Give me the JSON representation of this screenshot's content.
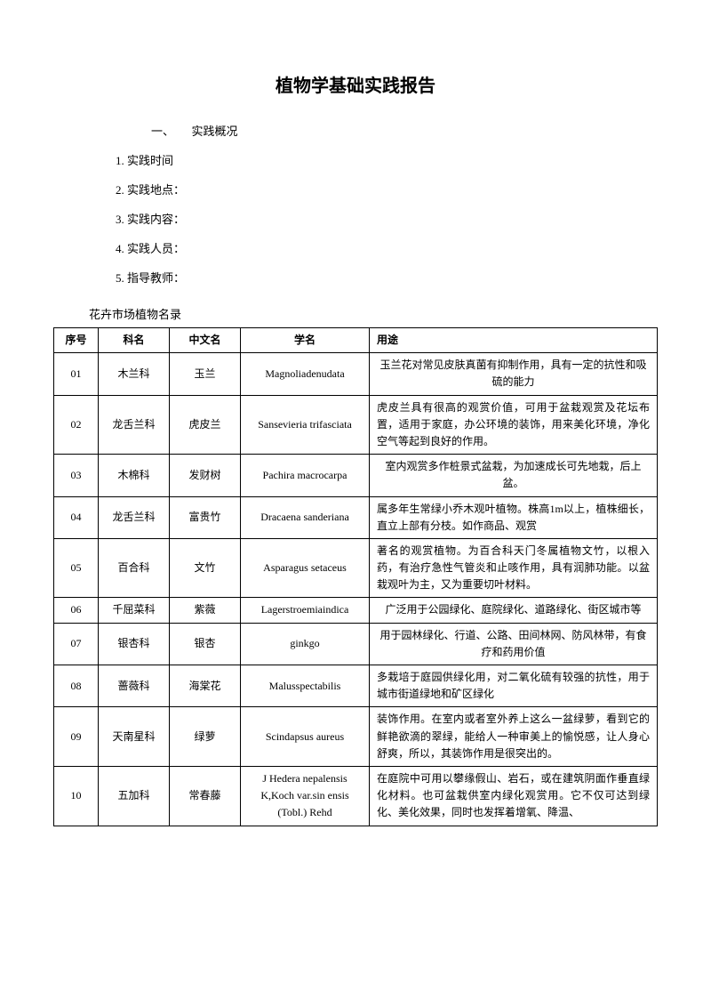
{
  "title": "植物学基础实践报告",
  "section_header": "一、　　实践概况",
  "info_items": [
    "1. 实践时间",
    "2. 实践地点：",
    "3. 实践内容：",
    "4. 实践人员：",
    "5. 指导教师："
  ],
  "subtitle": "花卉市场植物名录",
  "headers": {
    "seq": "序号",
    "family": "科名",
    "cname": "中文名",
    "sname": "学名",
    "usage": "用途"
  },
  "rows": [
    {
      "seq": "01",
      "family": "木兰科",
      "cname": "玉兰",
      "sname": "Magnoliadenudata",
      "usage": "玉兰花对常见皮肤真菌有抑制作用，具有一定的抗性和吸硫的能力",
      "usage_center": true
    },
    {
      "seq": "02",
      "family": "龙舌兰科",
      "cname": "虎皮兰",
      "sname": "Sansevieria trifasciata",
      "usage": "虎皮兰具有很高的观赏价值，可用于盆栽观赏及花坛布置，适用于家庭，办公环境的装饰，用来美化环境，净化空气等起到良好的作用。"
    },
    {
      "seq": "03",
      "family": "木棉科",
      "cname": "发财树",
      "sname": "Pachira macrocarpa",
      "usage": "室内观赏多作桩景式盆栽，为加速成长可先地栽，后上盆。",
      "usage_center": true
    },
    {
      "seq": "04",
      "family": "龙舌兰科",
      "cname": "富贵竹",
      "sname": "Dracaena sanderiana",
      "usage": "属多年生常绿小乔木观叶植物。株高1m以上，植株细长，直立上部有分枝。如作商品、观赏"
    },
    {
      "seq": "05",
      "family": "百合科",
      "cname": "文竹",
      "sname": "Asparagus setaceus",
      "usage": "著名的观赏植物。为百合科天门冬属植物文竹，以根入药，有治疗急性气管炎和止咳作用，具有润肺功能。以盆栽观叶为主，又为重要切叶材料。"
    },
    {
      "seq": "06",
      "family": "千屈菜科",
      "cname": "紫薇",
      "sname": "Lagerstroemiaindica",
      "usage": "广泛用于公园绿化、庭院绿化、道路绿化、街区城市等",
      "usage_center": true
    },
    {
      "seq": "07",
      "family": "银杏科",
      "cname": "银杏",
      "sname": "ginkgo",
      "usage": "用于园林绿化、行道、公路、田间林网、防风林带，有食疗和药用价值",
      "usage_center": true
    },
    {
      "seq": "08",
      "family": "蔷薇科",
      "cname": "海棠花",
      "sname": "Malusspectabilis",
      "usage": "多栽培于庭园供绿化用，对二氧化硫有较强的抗性，用于城市街道绿地和矿区绿化"
    },
    {
      "seq": "09",
      "family": "天南星科",
      "cname": "绿萝",
      "sname": "Scindapsus aureus",
      "usage": "装饰作用。在室内或者室外养上这么一盆绿萝，看到它的鲜艳欲滴的翠绿，能给人一种审美上的愉悦感，让人身心舒爽，所以，其装饰作用是很突出的。"
    },
    {
      "seq": "10",
      "family": "五加科",
      "cname": "常春藤",
      "sname": "J Hedera nepalensis K,Koch var.sin ensis (Tobl.) Rehd",
      "usage": "在庭院中可用以攀缘假山、岩石，或在建筑阴面作垂直绿化材料。也可盆栽供室内绿化观赏用。它不仅可达到绿化、美化效果，同时也发挥着增氧、降温、"
    }
  ]
}
